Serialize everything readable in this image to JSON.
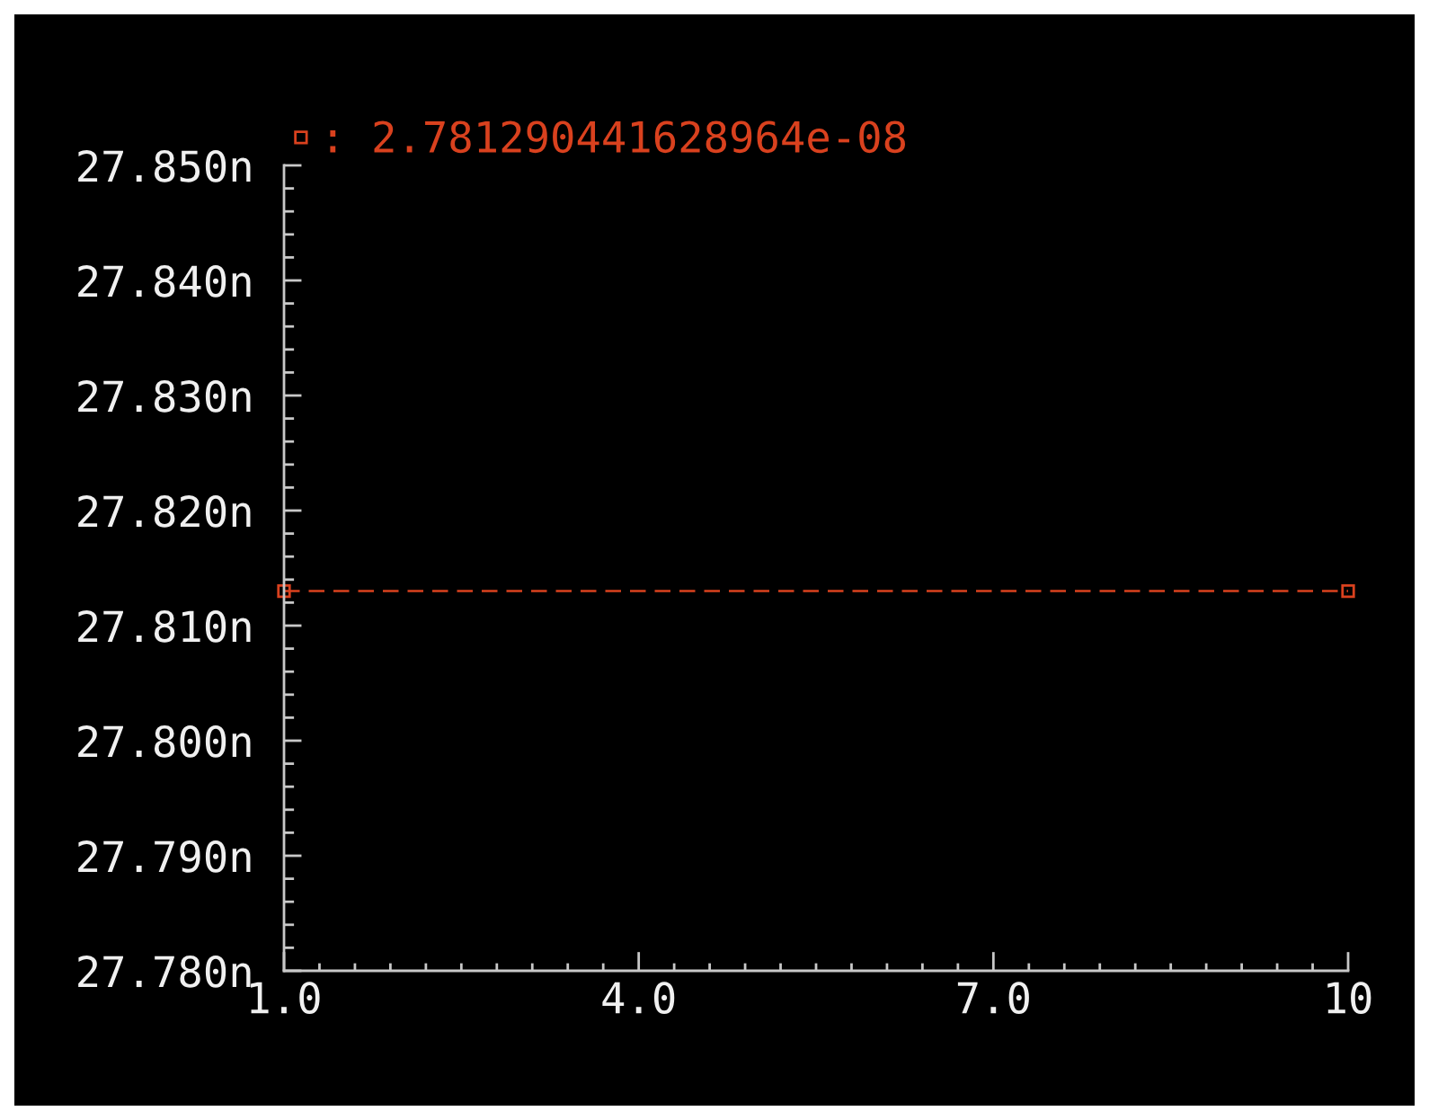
{
  "chart_data": {
    "type": "line",
    "x": [
      1,
      10
    ],
    "series": [
      {
        "name": ": 2.781290441628964e-08",
        "color": "#d9411e",
        "values": [
          27.813,
          27.813
        ]
      }
    ],
    "xlim": [
      1,
      10
    ],
    "xticks": [
      {
        "value": 1,
        "label": "1.0"
      },
      {
        "value": 1.3,
        "label": null
      },
      {
        "value": 1.6,
        "label": null
      },
      {
        "value": 1.9,
        "label": null
      },
      {
        "value": 2.2,
        "label": null
      },
      {
        "value": 2.5,
        "label": null
      },
      {
        "value": 2.8,
        "label": null
      },
      {
        "value": 3.1,
        "label": null
      },
      {
        "value": 3.4,
        "label": null
      },
      {
        "value": 3.7,
        "label": null
      },
      {
        "value": 4,
        "label": "4.0"
      },
      {
        "value": 4.3,
        "label": null
      },
      {
        "value": 4.6,
        "label": null
      },
      {
        "value": 4.9,
        "label": null
      },
      {
        "value": 5.2,
        "label": null
      },
      {
        "value": 5.5,
        "label": null
      },
      {
        "value": 5.8,
        "label": null
      },
      {
        "value": 6.1,
        "label": null
      },
      {
        "value": 6.4,
        "label": null
      },
      {
        "value": 6.7,
        "label": null
      },
      {
        "value": 7,
        "label": "7.0"
      },
      {
        "value": 7.3,
        "label": null
      },
      {
        "value": 7.6,
        "label": null
      },
      {
        "value": 7.9,
        "label": null
      },
      {
        "value": 8.2,
        "label": null
      },
      {
        "value": 8.5,
        "label": null
      },
      {
        "value": 8.8,
        "label": null
      },
      {
        "value": 9.1,
        "label": null
      },
      {
        "value": 9.4,
        "label": null
      },
      {
        "value": 9.7,
        "label": null
      },
      10
    ],
    "ylim": [
      27.78,
      27.85
    ],
    "yticks": [
      {
        "value": 27.78,
        "label": "27.780n"
      },
      {
        "value": 27.782,
        "label": null
      },
      {
        "value": 27.784,
        "label": null
      },
      {
        "value": 27.786,
        "label": null
      },
      {
        "value": 27.788,
        "label": null
      },
      {
        "value": 27.79,
        "label": "27.790n"
      },
      {
        "value": 27.792,
        "label": null
      },
      {
        "value": 27.794,
        "label": null
      },
      {
        "value": 27.796,
        "label": null
      },
      {
        "value": 27.798,
        "label": null
      },
      {
        "value": 27.8,
        "label": "27.800n"
      },
      {
        "value": 27.802,
        "label": null
      },
      {
        "value": 27.804,
        "label": null
      },
      {
        "value": 27.806,
        "label": null
      },
      {
        "value": 27.808,
        "label": null
      },
      {
        "value": 27.81,
        "label": "27.810n"
      },
      {
        "value": 27.812,
        "label": null
      },
      {
        "value": 27.814,
        "label": null
      },
      {
        "value": 27.816,
        "label": null
      },
      {
        "value": 27.818,
        "label": null
      },
      {
        "value": 27.82,
        "label": "27.820n"
      },
      {
        "value": 27.822,
        "label": null
      },
      {
        "value": 27.824,
        "label": null
      },
      {
        "value": 27.826,
        "label": null
      },
      {
        "value": 27.828,
        "label": null
      },
      {
        "value": 27.83,
        "label": "27.830n"
      },
      {
        "value": 27.832,
        "label": null
      },
      {
        "value": 27.834,
        "label": null
      },
      {
        "value": 27.836,
        "label": null
      },
      {
        "value": 27.838,
        "label": null
      },
      {
        "value": 27.84,
        "label": "27.840n"
      },
      {
        "value": 27.842,
        "label": null
      },
      {
        "value": 27.844,
        "label": null
      },
      {
        "value": 27.846,
        "label": null
      },
      {
        "value": 27.848,
        "label": null
      },
      {
        "value": 27.85,
        "label": "27.850n"
      }
    ],
    "marker": "square",
    "line_style": "dashed",
    "legend": "top left"
  }
}
